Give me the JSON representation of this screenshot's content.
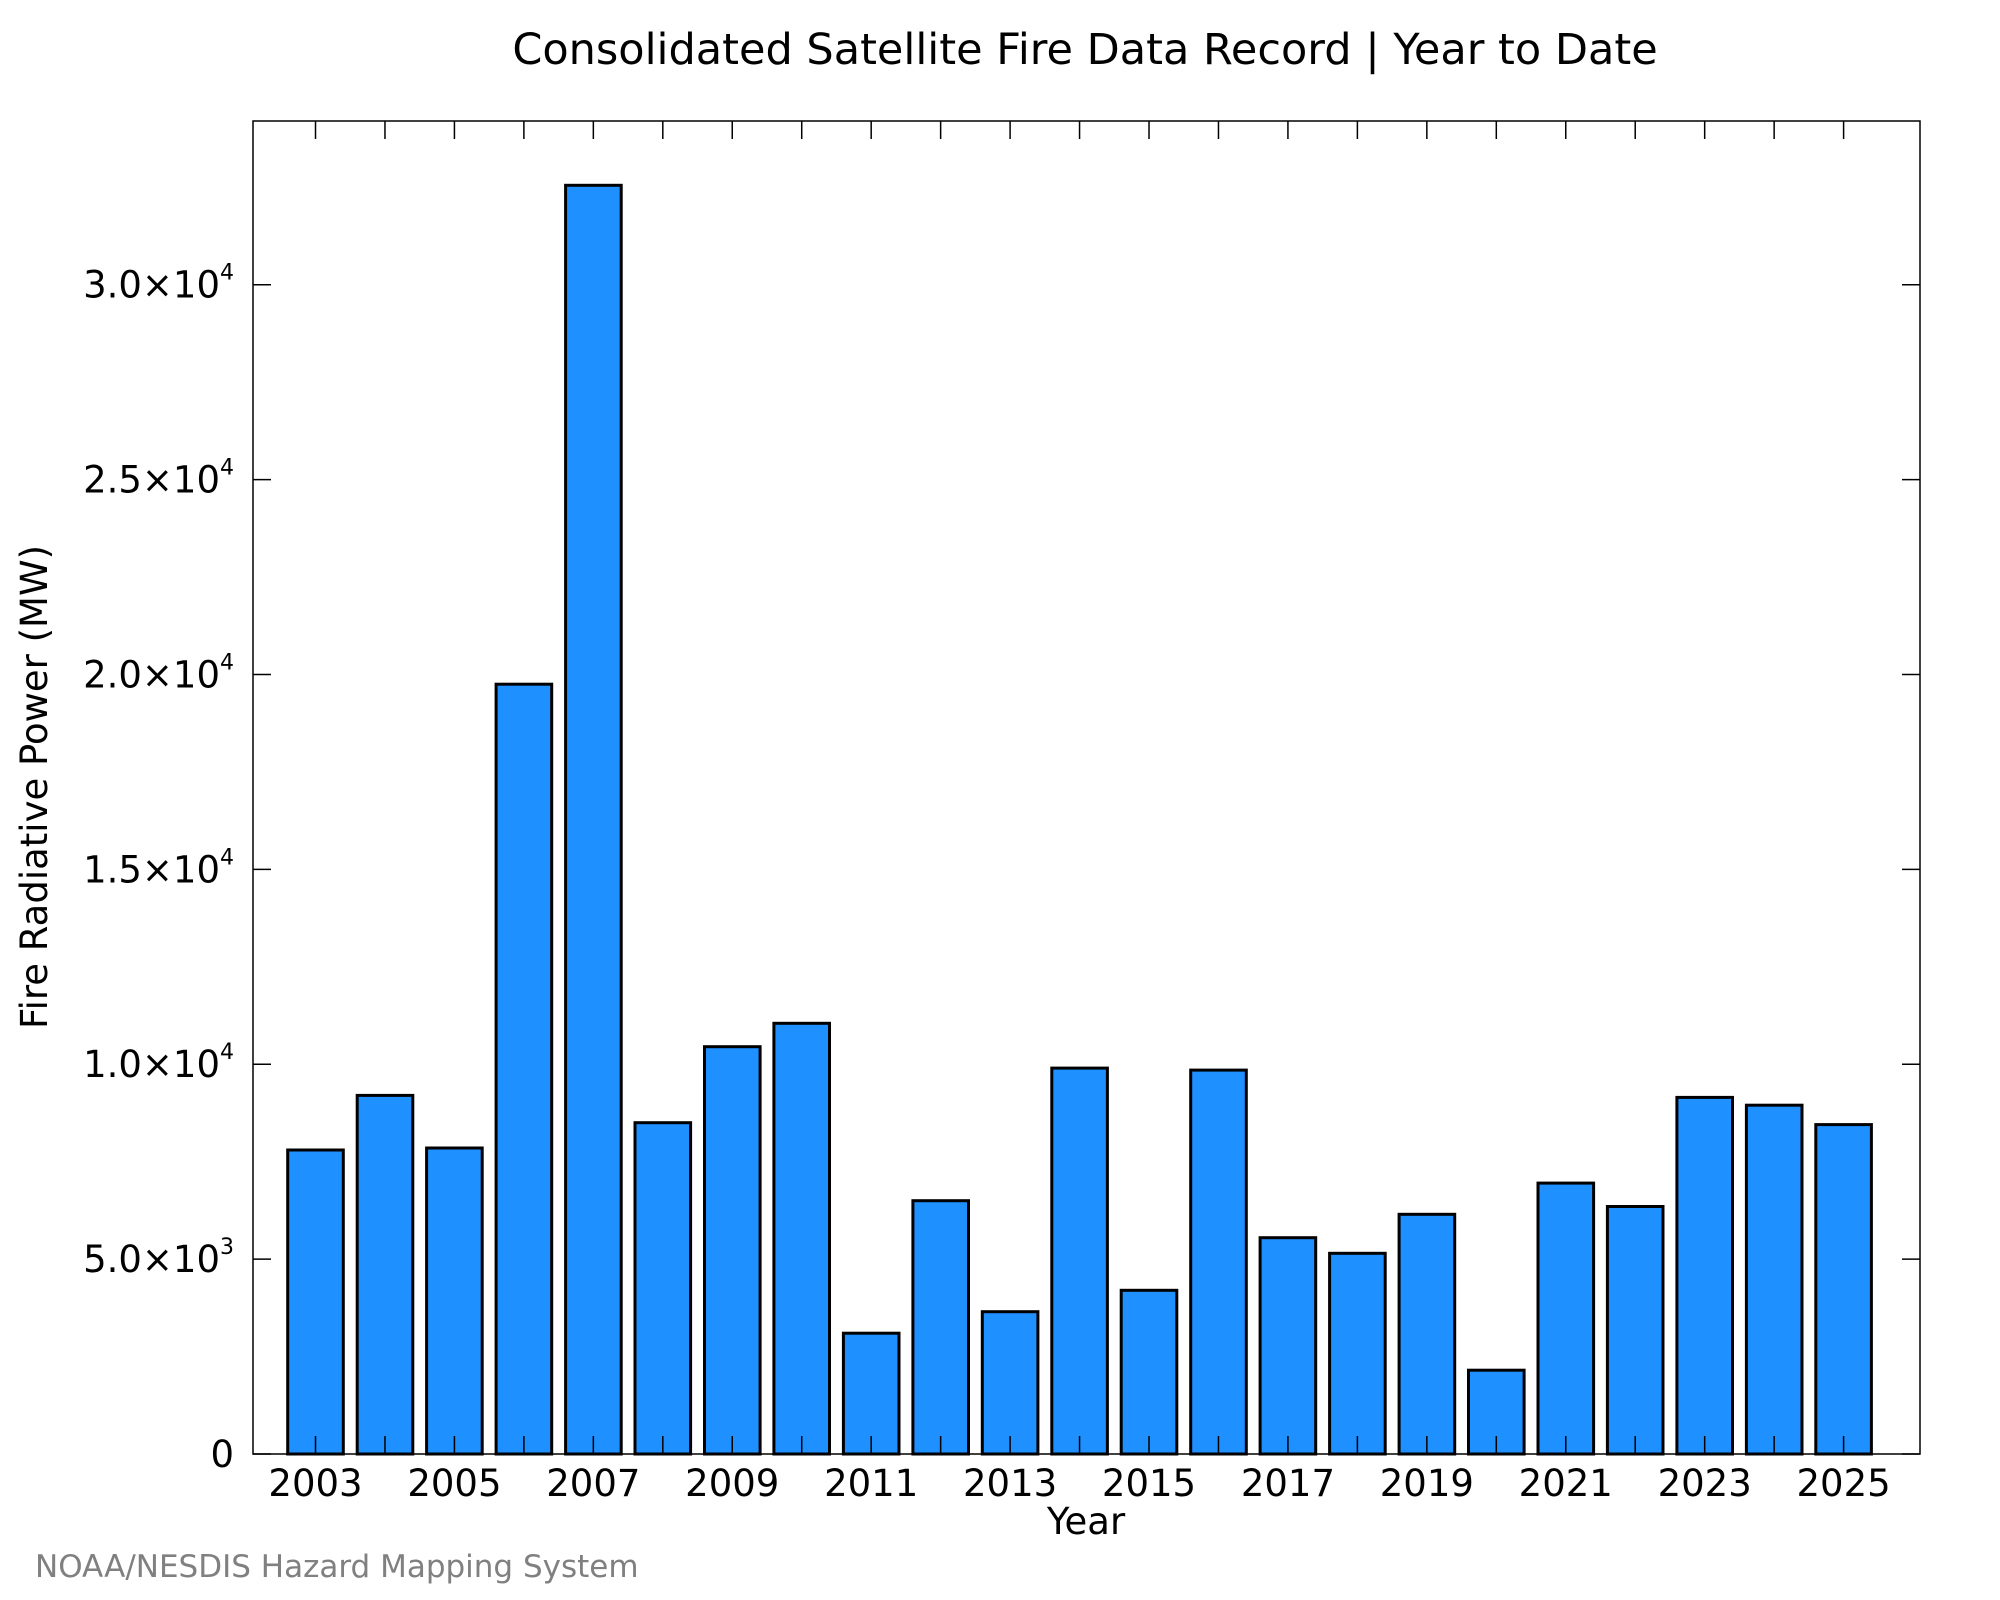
{
  "chart_data": {
    "type": "bar",
    "title": "Consolidated Satellite Fire Data Record | Year to Date",
    "xlabel": "Year",
    "ylabel": "Fire Radiative Power (MW)",
    "source": "NOAA/NESDIS Hazard Mapping System",
    "categories": [
      2003,
      2004,
      2005,
      2006,
      2007,
      2008,
      2009,
      2010,
      2011,
      2012,
      2013,
      2014,
      2015,
      2016,
      2017,
      2018,
      2019,
      2020,
      2021,
      2022,
      2023,
      2024,
      2025
    ],
    "values": [
      7800,
      9200,
      7850,
      19750,
      32550,
      8500,
      10450,
      11050,
      3100,
      6500,
      3650,
      9900,
      4200,
      9850,
      5550,
      5150,
      6150,
      2150,
      6950,
      6350,
      9150,
      8950,
      8450
    ],
    "xticks": [
      {
        "value": 2003,
        "label": "2003"
      },
      {
        "value": 2005,
        "label": "2005"
      },
      {
        "value": 2007,
        "label": "2007"
      },
      {
        "value": 2009,
        "label": "2009"
      },
      {
        "value": 2011,
        "label": "2011"
      },
      {
        "value": 2013,
        "label": "2013"
      },
      {
        "value": 2015,
        "label": "2015"
      },
      {
        "value": 2017,
        "label": "2017"
      },
      {
        "value": 2019,
        "label": "2019"
      },
      {
        "value": 2021,
        "label": "2021"
      },
      {
        "value": 2023,
        "label": "2023"
      },
      {
        "value": 2025,
        "label": "2025"
      }
    ],
    "yticks": [
      {
        "value": 0,
        "mantissa": "0",
        "exp": ""
      },
      {
        "value": 5000,
        "mantissa": "5.0×10",
        "exp": "3"
      },
      {
        "value": 10000,
        "mantissa": "1.0×10",
        "exp": "4"
      },
      {
        "value": 15000,
        "mantissa": "1.5×10",
        "exp": "4"
      },
      {
        "value": 20000,
        "mantissa": "2.0×10",
        "exp": "4"
      },
      {
        "value": 25000,
        "mantissa": "2.5×10",
        "exp": "4"
      },
      {
        "value": 30000,
        "mantissa": "3.0×10",
        "exp": "4"
      }
    ],
    "xlim": [
      2002.1,
      2026.1
    ],
    "ylim": [
      0,
      34200
    ],
    "grid": false,
    "legend": false,
    "colors": {
      "bar_fill": "#1e90ff",
      "bar_edge": "#000000",
      "source_text": "#808080"
    }
  }
}
